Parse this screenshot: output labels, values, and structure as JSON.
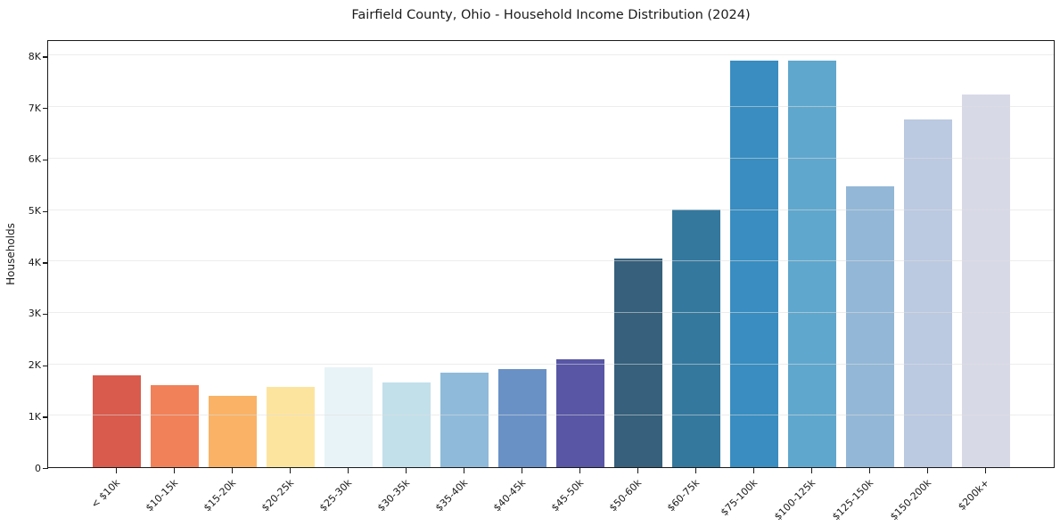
{
  "chart_data": {
    "type": "bar",
    "title": "Fairfield County, Ohio - Household Income Distribution (2024)",
    "xlabel": "",
    "ylabel": "Households",
    "categories": [
      "< $10k",
      "$10-15k",
      "$15-20k",
      "$20-25k",
      "$25-30k",
      "$30-35k",
      "$35-40k",
      "$40-45k",
      "$45-50k",
      "$50-60k",
      "$60-75k",
      "$75-100k",
      "$100-125k",
      "$125-150k",
      "$150-200k",
      "$200k+"
    ],
    "values": [
      1780,
      1590,
      1380,
      1560,
      1950,
      1650,
      1830,
      1900,
      2100,
      4050,
      5010,
      7910,
      7910,
      5460,
      6760,
      7250
    ],
    "bar_colors": [
      "#d85b4d",
      "#f08159",
      "#f9b266",
      "#fde49e",
      "#e8f3f7",
      "#c2e0ea",
      "#8fbada",
      "#6991c6",
      "#5856a5",
      "#36607b",
      "#35789d",
      "#398dc0",
      "#60a7cd",
      "#93b7d6",
      "#bbc9e1",
      "#d8d9e7"
    ],
    "ylim": [
      0,
      8320
    ],
    "ytick_values": [
      0,
      1000,
      2000,
      3000,
      4000,
      5000,
      6000,
      7000,
      8000
    ],
    "ytick_labels": [
      "0",
      "1K",
      "2K",
      "3K",
      "4K",
      "5K",
      "6K",
      "7K",
      "8K"
    ],
    "grid": "horizontal",
    "legend": "none",
    "colors": {
      "background": "#ffffff",
      "axis": "#1a1a1a",
      "gridline": "#e6e6e6",
      "text": "#1a1a1a"
    }
  }
}
